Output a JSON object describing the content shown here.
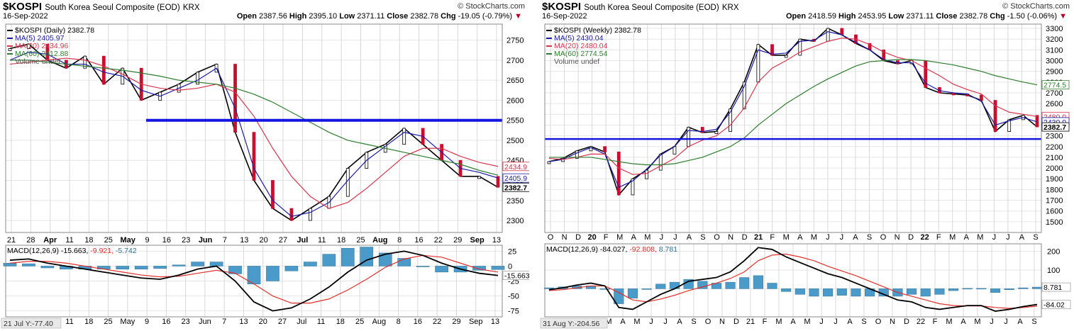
{
  "panels": [
    {
      "symbol": "$KOSPI",
      "description": "South Korea Seoul Composite (EOD)",
      "exchange": "KRX",
      "date": "16-Sep-2022",
      "brand": "© StockCharts.com",
      "ohlc": {
        "open_label": "Open",
        "open": "2387.56",
        "high_label": "High",
        "high": "2395.10",
        "low_label": "Low",
        "low": "2371.11",
        "close_label": "Close",
        "close": "2382.78",
        "chg_label": "Chg",
        "chg": "-19.05 (-0.79%)"
      },
      "legend": [
        {
          "text": "$KOSPI (Daily) 2382.78",
          "color": "#000000"
        },
        {
          "text": "MA(5) 2405.97",
          "color": "#1a1aa8"
        },
        {
          "text": "MA(20) 2434.96",
          "color": "#d8354c"
        },
        {
          "text": "MA(60) 2412.88",
          "color": "#2e7d2e"
        },
        {
          "text": "Volume undef",
          "color": "#555555"
        }
      ],
      "price_ticks": [
        "2750",
        "2700",
        "2650",
        "2600",
        "2550",
        "2500",
        "2450",
        "2400",
        "2350",
        "2300"
      ],
      "price_tags": [
        {
          "text": "2434.9",
          "color": "#d8354c"
        },
        {
          "text": "2405.9",
          "color": "#1a1aa8"
        },
        {
          "text": "2382.7",
          "color": "#000000"
        }
      ],
      "x_ticks": [
        "21",
        "28",
        "Apr",
        "11",
        "18",
        "25",
        "May",
        "9",
        "16",
        "23",
        "Jun",
        "7",
        "13",
        "20",
        "27",
        "Jul",
        "11",
        "18",
        "25",
        "Aug",
        "8",
        "16",
        "22",
        "29",
        "Sep",
        "13"
      ],
      "macd_label": "MACD(12,26,9)",
      "macd_values": [
        "-15.663",
        "-9.921",
        "-5.742"
      ],
      "macd_ticks": [
        "25",
        "0",
        "-25",
        "-50",
        "-75"
      ],
      "macd_tags": [
        {
          "text": "-15.663",
          "color": "#000000"
        }
      ],
      "macd_x_ticks": [
        "11",
        "18",
        "25",
        "May",
        "9",
        "16",
        "23",
        "Jun",
        "7",
        "13",
        "20",
        "27",
        "Jul",
        "11",
        "18",
        "25",
        "Aug",
        "8",
        "16",
        "22",
        "29",
        "Sep",
        "13"
      ],
      "cursor_readout": "21 Jul Y:-77.40"
    },
    {
      "symbol": "$KOSPI",
      "description": "South Korea Seoul Composite (EOD)",
      "exchange": "KRX",
      "date": "16-Sep-2022",
      "brand": "© StockCharts.com",
      "ohlc": {
        "open_label": "Open",
        "open": "2418.59",
        "high_label": "High",
        "high": "2453.95",
        "low_label": "Low",
        "low": "2371.11",
        "close_label": "Close",
        "close": "2382.78",
        "chg_label": "Chg",
        "chg": "-1.50 (-0.06%)"
      },
      "legend": [
        {
          "text": "$KOSPI (Weekly) 2382.78",
          "color": "#000000"
        },
        {
          "text": "MA(5) 2430.04",
          "color": "#1a1aa8"
        },
        {
          "text": "MA(20) 2480.04",
          "color": "#d8354c"
        },
        {
          "text": "MA(60) 2774.54",
          "color": "#2e7d2e"
        },
        {
          "text": "Volume undef",
          "color": "#555555"
        }
      ],
      "price_ticks": [
        "3300",
        "3200",
        "3100",
        "3000",
        "2900",
        "2800",
        "2700",
        "2600",
        "2500",
        "2400",
        "2300",
        "2200",
        "2100",
        "2000",
        "1900",
        "1800",
        "1700",
        "1600",
        "1500"
      ],
      "price_tags": [
        {
          "text": "2774.5",
          "color": "#2e7d2e"
        },
        {
          "text": "2480.0",
          "color": "#d8354c"
        },
        {
          "text": "2430.0",
          "color": "#1a1aa8"
        },
        {
          "text": "2382.7",
          "color": "#000000"
        }
      ],
      "x_ticks": [
        "O",
        "N",
        "D",
        "20",
        "F",
        "M",
        "A",
        "M",
        "J",
        "J",
        "A",
        "S",
        "O",
        "N",
        "D",
        "21",
        "F",
        "M",
        "A",
        "M",
        "J",
        "J",
        "A",
        "S",
        "O",
        "N",
        "D",
        "22",
        "F",
        "M",
        "A",
        "M",
        "J",
        "J",
        "A",
        "S"
      ],
      "macd_label": "MACD(12,26,9)",
      "macd_values": [
        "-84.027",
        "-92.808",
        "8.781"
      ],
      "macd_ticks": [
        "200",
        "100",
        "0"
      ],
      "macd_tags": [
        {
          "text": "8.781",
          "color": "#000000"
        },
        {
          "text": "-84.02",
          "color": "#000000"
        }
      ],
      "macd_x_ticks": [
        "M",
        "A",
        "M",
        "J",
        "J",
        "A",
        "S",
        "O",
        "N",
        "D",
        "21",
        "F",
        "M",
        "A",
        "M",
        "J",
        "J",
        "A",
        "S",
        "O",
        "N",
        "D",
        "22",
        "F",
        "M",
        "A",
        "M",
        "J",
        "J",
        "A",
        "S"
      ],
      "cursor_readout": "31 Aug Y:-204.56"
    }
  ],
  "chart_data": [
    {
      "type": "line",
      "title": "$KOSPI South Korea Seoul Composite (EOD) KRX",
      "interval": "daily",
      "ylim": [
        2270,
        2790
      ],
      "x": [
        "Mar 21",
        "Mar 28",
        "Apr 4",
        "Apr 11",
        "Apr 18",
        "Apr 25",
        "May 2",
        "May 9",
        "May 16",
        "May 23",
        "May 30",
        "Jun 7",
        "Jun 13",
        "Jun 20",
        "Jun 27",
        "Jul 4",
        "Jul 11",
        "Jul 18",
        "Jul 25",
        "Aug 1",
        "Aug 8",
        "Aug 16",
        "Aug 22",
        "Aug 29",
        "Sep 5",
        "Sep 13",
        "Sep 16"
      ],
      "series": [
        {
          "name": "$KOSPI",
          "values": [
            2729,
            2740,
            2700,
            2680,
            2710,
            2640,
            2680,
            2600,
            2620,
            2640,
            2670,
            2690,
            2520,
            2400,
            2330,
            2300,
            2330,
            2360,
            2430,
            2470,
            2490,
            2530,
            2490,
            2450,
            2410,
            2410,
            2382.78
          ]
        },
        {
          "name": "MA(5)",
          "values": [
            2700,
            2720,
            2715,
            2690,
            2690,
            2670,
            2660,
            2625,
            2610,
            2630,
            2650,
            2680,
            2580,
            2430,
            2350,
            2310,
            2320,
            2345,
            2400,
            2450,
            2485,
            2520,
            2510,
            2470,
            2430,
            2420,
            2405.97
          ]
        },
        {
          "name": "MA(20)",
          "values": [
            2690,
            2695,
            2700,
            2705,
            2700,
            2685,
            2665,
            2640,
            2630,
            2625,
            2630,
            2640,
            2620,
            2560,
            2480,
            2410,
            2360,
            2330,
            2345,
            2380,
            2420,
            2460,
            2480,
            2480,
            2460,
            2445,
            2434.96
          ]
        },
        {
          "name": "MA(60)",
          "values": [
            2700,
            2700,
            2695,
            2690,
            2685,
            2680,
            2675,
            2668,
            2660,
            2650,
            2645,
            2640,
            2630,
            2615,
            2595,
            2570,
            2545,
            2520,
            2500,
            2490,
            2480,
            2470,
            2460,
            2450,
            2440,
            2425,
            2412.88
          ]
        }
      ],
      "horizontal_lines": [
        {
          "y": 2550,
          "color": "#1515e0"
        }
      ],
      "macd": {
        "label": "MACD(12,26,9)",
        "ylim": [
          -85,
          35
        ],
        "macd": [
          10,
          12,
          5,
          0,
          -5,
          -10,
          -15,
          -20,
          -22,
          -15,
          -5,
          0,
          -25,
          -60,
          -75,
          -70,
          -55,
          -35,
          -10,
          10,
          20,
          25,
          18,
          5,
          -5,
          -12,
          -15.663
        ],
        "signal": [
          5,
          8,
          8,
          5,
          0,
          -5,
          -10,
          -15,
          -18,
          -17,
          -12,
          -7,
          -12,
          -30,
          -50,
          -62,
          -62,
          -55,
          -40,
          -22,
          -2,
          12,
          18,
          15,
          5,
          -5,
          -9.921
        ],
        "histogram": [
          5,
          4,
          -3,
          -5,
          -5,
          -5,
          -5,
          -5,
          -4,
          2,
          7,
          7,
          -13,
          -30,
          -25,
          -8,
          7,
          20,
          30,
          32,
          22,
          13,
          0,
          -10,
          -10,
          -7,
          -5.742
        ]
      }
    },
    {
      "type": "line",
      "title": "$KOSPI South Korea Seoul Composite (EOD) KRX",
      "interval": "weekly",
      "ylim": [
        1400,
        3340
      ],
      "x": [
        "Oct 2019",
        "Nov 2019",
        "Dec 2019",
        "Jan 2020",
        "Feb 2020",
        "Mar 2020",
        "Apr 2020",
        "May 2020",
        "Jun 2020",
        "Jul 2020",
        "Aug 2020",
        "Sep 2020",
        "Oct 2020",
        "Nov 2020",
        "Dec 2020",
        "Jan 2021",
        "Feb 2021",
        "Mar 2021",
        "Apr 2021",
        "May 2021",
        "Jun 2021",
        "Jul 2021",
        "Aug 2021",
        "Sep 2021",
        "Oct 2021",
        "Nov 2021",
        "Dec 2021",
        "Jan 2022",
        "Feb 2022",
        "Mar 2022",
        "Apr 2022",
        "May 2022",
        "Jun 2022",
        "Jul 2022",
        "Aug 2022",
        "Sep 2022"
      ],
      "series": [
        {
          "name": "$KOSPI",
          "values": [
            2060,
            2090,
            2160,
            2200,
            2150,
            1750,
            1900,
            1980,
            2130,
            2200,
            2380,
            2330,
            2340,
            2550,
            2800,
            3150,
            3050,
            3050,
            3200,
            3180,
            3300,
            3240,
            3160,
            3100,
            3000,
            2970,
            3000,
            2750,
            2700,
            2690,
            2680,
            2630,
            2340,
            2450,
            2490,
            2382.78
          ]
        },
        {
          "name": "MA(5)",
          "values": [
            2060,
            2080,
            2140,
            2190,
            2130,
            1820,
            1880,
            1990,
            2120,
            2200,
            2350,
            2340,
            2360,
            2520,
            2760,
            3100,
            3060,
            3070,
            3180,
            3190,
            3270,
            3240,
            3170,
            3100,
            3010,
            2980,
            2980,
            2790,
            2720,
            2700,
            2690,
            2620,
            2400,
            2440,
            2470,
            2430.04
          ]
        },
        {
          "name": "MA(20)",
          "values": [
            2090,
            2080,
            2100,
            2130,
            2130,
            2000,
            1940,
            1950,
            2020,
            2090,
            2200,
            2260,
            2300,
            2400,
            2560,
            2800,
            2930,
            3000,
            3080,
            3130,
            3180,
            3210,
            3200,
            3150,
            3080,
            3030,
            3000,
            2930,
            2860,
            2780,
            2730,
            2690,
            2580,
            2520,
            2500,
            2480.04
          ]
        },
        {
          "name": "MA(60)",
          "values": [
            2100,
            2100,
            2100,
            2100,
            2080,
            2060,
            2040,
            2030,
            2030,
            2040,
            2070,
            2100,
            2150,
            2200,
            2280,
            2400,
            2500,
            2600,
            2680,
            2760,
            2830,
            2890,
            2950,
            2990,
            3000,
            3010,
            3010,
            3000,
            2980,
            2960,
            2930,
            2900,
            2860,
            2830,
            2800,
            2774.54
          ]
        }
      ],
      "horizontal_lines": [
        {
          "y": 2270,
          "color": "#1515e0"
        }
      ],
      "macd": {
        "label": "MACD(12,26,9)",
        "ylim": [
          -150,
          240
        ],
        "macd": [
          -5,
          5,
          20,
          30,
          15,
          -100,
          -110,
          -70,
          -30,
          0,
          40,
          50,
          60,
          90,
          150,
          220,
          210,
          170,
          140,
          110,
          80,
          60,
          30,
          0,
          -30,
          -60,
          -70,
          -100,
          -110,
          -100,
          -90,
          -90,
          -120,
          -110,
          -95,
          -84.027
        ],
        "signal": [
          -10,
          -5,
          5,
          15,
          15,
          -20,
          -60,
          -70,
          -55,
          -35,
          -10,
          10,
          30,
          55,
          90,
          150,
          180,
          185,
          170,
          150,
          120,
          95,
          70,
          40,
          10,
          -20,
          -40,
          -60,
          -80,
          -90,
          -92,
          -92,
          -100,
          -105,
          -100,
          -92.808
        ],
        "histogram": [
          5,
          10,
          15,
          15,
          0,
          -80,
          -50,
          0,
          25,
          35,
          50,
          40,
          30,
          35,
          60,
          70,
          30,
          -15,
          -30,
          -40,
          -40,
          -35,
          -40,
          -40,
          -40,
          -40,
          -30,
          -40,
          -30,
          -10,
          2,
          2,
          -20,
          -5,
          5,
          8.781
        ]
      }
    }
  ]
}
